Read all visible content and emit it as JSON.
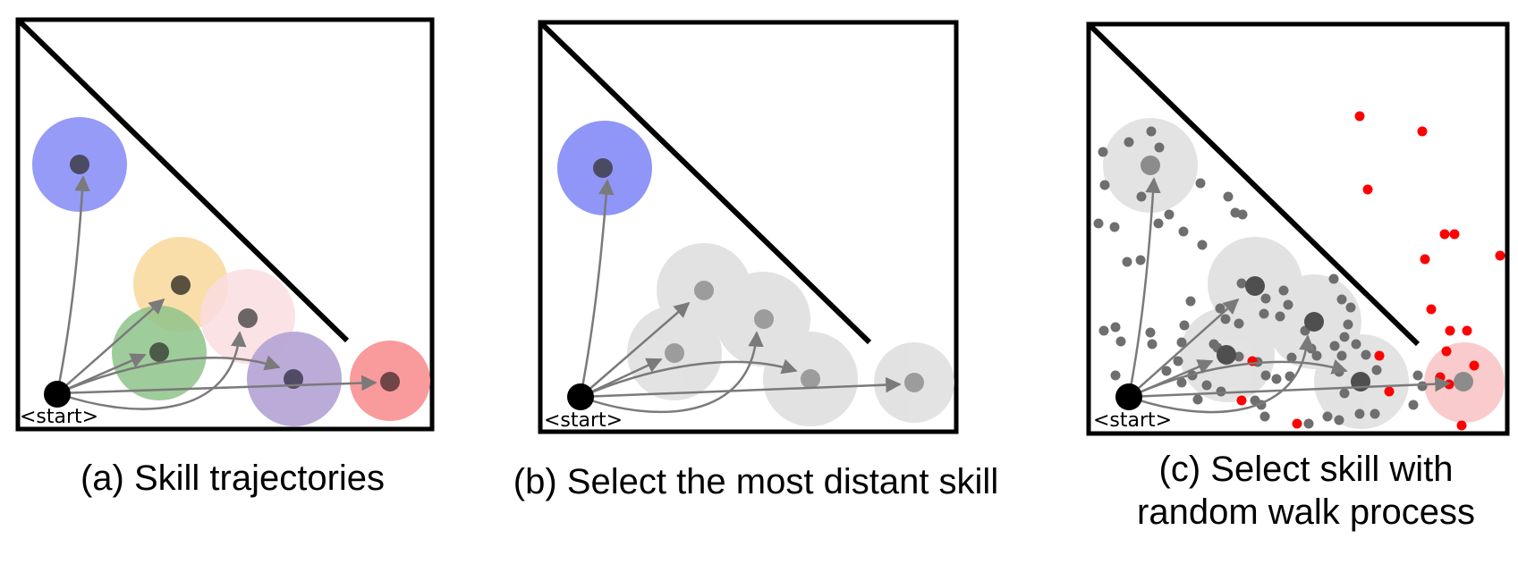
{
  "start_label": "<start>",
  "captions": {
    "a": "(a) Skill trajectories",
    "b": "(b) Select the most distant skill",
    "c_line1": "(c) Select skill with",
    "c_line2": "random walk process"
  },
  "colors": {
    "blue": "#8f96f7",
    "orange": "#f9d89a",
    "green": "#8ec38a",
    "pink": "#f9dde0",
    "purple": "#b7a6d6",
    "red": "#f99597",
    "gray_region": "#dedede",
    "arrow": "#7a7a7a",
    "random_walk_red": "#ff0000",
    "random_walk_gray": "#6e6e6e"
  }
}
